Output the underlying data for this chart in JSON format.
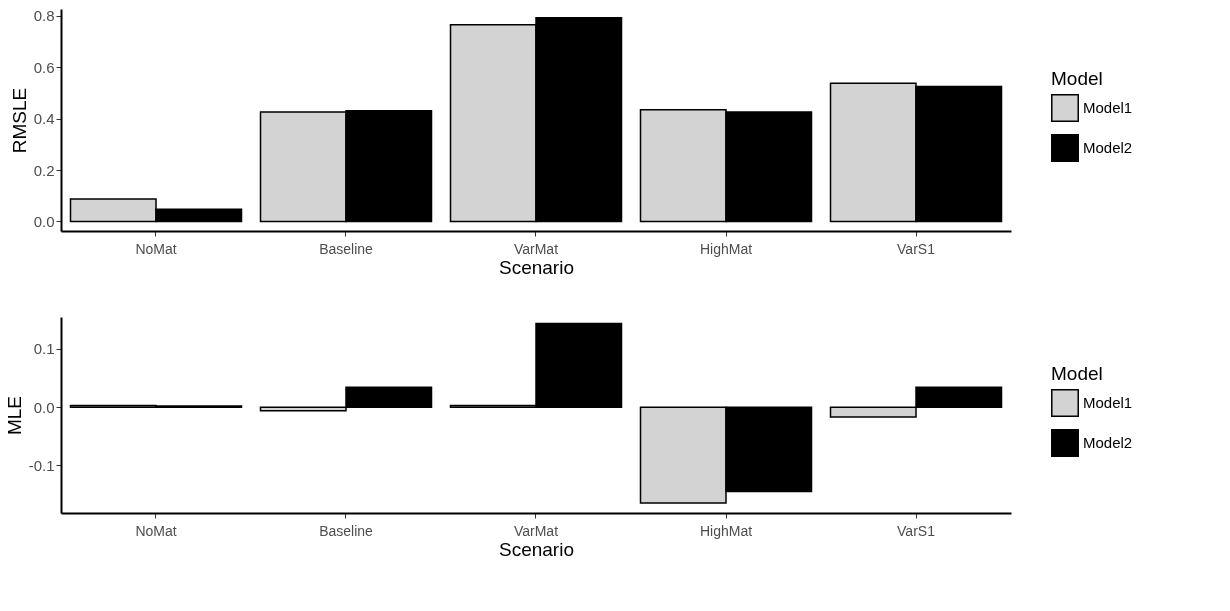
{
  "chart_data": [
    {
      "type": "bar",
      "categories": [
        "NoMat",
        "Baseline",
        "VarMat",
        "HighMat",
        "VarS1"
      ],
      "xlabel": "Scenario",
      "ylabel": "RMSLE",
      "legend_title": "Model",
      "legend": "right",
      "grid": false,
      "series": [
        {
          "name": "Model1",
          "color": "#d3d3d3",
          "values": [
            0.088,
            0.426,
            0.766,
            0.435,
            0.538
          ]
        },
        {
          "name": "Model2",
          "color": "#000000",
          "values": [
            0.048,
            0.431,
            0.793,
            0.426,
            0.525
          ]
        }
      ],
      "ylim": [
        -0.037,
        0.827
      ],
      "yticks": [
        {
          "value": 0,
          "label": "0.0"
        },
        {
          "value": 0.2,
          "label": "0.2"
        },
        {
          "value": 0.4,
          "label": "0.4"
        },
        {
          "value": 0.6,
          "label": "0.6"
        },
        {
          "value": 0.8,
          "label": "0.8"
        }
      ]
    },
    {
      "type": "bar",
      "categories": [
        "NoMat",
        "Baseline",
        "VarMat",
        "HighMat",
        "VarS1"
      ],
      "xlabel": "Scenario",
      "ylabel": "MLE",
      "legend_title": "Model",
      "legend": "right",
      "grid": false,
      "series": [
        {
          "name": "Model1",
          "color": "#d3d3d3",
          "values": [
            0.003,
            -0.006,
            0.003,
            -0.165,
            -0.017
          ]
        },
        {
          "name": "Model2",
          "color": "#000000",
          "values": [
            0.002,
            0.034,
            0.144,
            -0.145,
            0.034
          ]
        }
      ],
      "ylim": [
        -0.182,
        0.155
      ],
      "yticks": [
        {
          "value": -0.1,
          "label": "-0.1"
        },
        {
          "value": 0,
          "label": "0.0"
        },
        {
          "value": 0.1,
          "label": "0.1"
        }
      ]
    }
  ]
}
